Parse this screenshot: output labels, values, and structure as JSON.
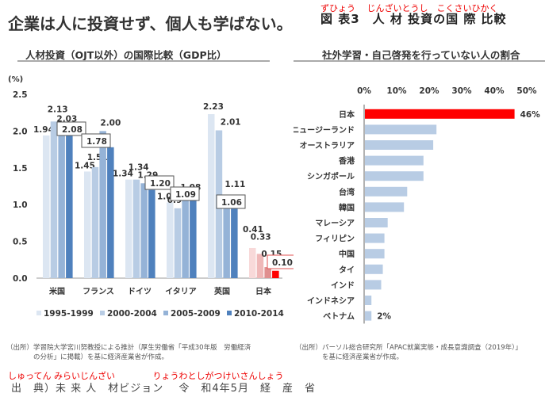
{
  "header": {
    "main_title": "企業は人に投資せず、個人も学ばない。",
    "figure_ruby": "ずひょう　 じんざいとうし　こくさいひかく",
    "figure_title": "図 表3　人 材 投資の国 際 比較"
  },
  "footer": {
    "ruby": "しゅってん みらいじんざい　　　　 りょうわとしがつけいさんしょう",
    "text": "出　典）未 来 人　材ビジョン　 令　和4年5月　経　産　省"
  },
  "chart_data": [
    {
      "type": "bar",
      "title": "人材投資（OJT以外）の国際比較（GDP比）",
      "ylabel": "(%)",
      "xlabel": "",
      "ylim": [
        0,
        2.5
      ],
      "yticks": [
        "0.0",
        "0.5",
        "1.0",
        "1.5",
        "2.0",
        "2.5"
      ],
      "grid": false,
      "legend_position": "bottom",
      "categories": [
        "米国",
        "フランス",
        "ドイツ",
        "イタリア",
        "英国",
        "日本"
      ],
      "series": [
        {
          "name": "1995-1999",
          "values": [
            1.94,
            1.45,
            1.34,
            1.03,
            2.23,
            0.41
          ],
          "color": "#dce6f2"
        },
        {
          "name": "2000-2004",
          "values": [
            2.13,
            1.51,
            1.34,
            0.95,
            2.01,
            0.33
          ],
          "color": "#b8cce4"
        },
        {
          "name": "2005-2009",
          "values": [
            2.03,
            2.0,
            1.29,
            1.08,
            1.11,
            0.15
          ],
          "color": "#95b3d7"
        },
        {
          "name": "2010-2014",
          "values": [
            2.08,
            1.78,
            1.2,
            1.09,
            1.06,
            0.1
          ],
          "color": "#4f81bd"
        }
      ],
      "japan_colors": [
        "#f8d9d9",
        "#efb8b8",
        "#e08f8f",
        "#ff0000"
      ],
      "boxed_labels": "2010-2014",
      "note": "（出所）学習院大学宮川努教授による推計（厚生労働省「平成30年版　労働経済\n　　　　の分析」に掲載）を基に経済産業省が作成。"
    },
    {
      "type": "bar",
      "orientation": "horizontal",
      "title": "社外学習・自己啓発を行っていない人の割合",
      "xlim": [
        0,
        50
      ],
      "xticks": [
        "0%",
        "10%",
        "20%",
        "30%",
        "40%",
        "50%"
      ],
      "grid": false,
      "categories": [
        "日本",
        "ニュージーランド",
        "オーストラリア",
        "香港",
        "シンガポール",
        "台湾",
        "韓国",
        "マレーシア",
        "フィリピン",
        "中国",
        "タイ",
        "インド",
        "インドネシア",
        "ベトナム"
      ],
      "values": [
        46,
        22,
        21,
        18,
        18,
        13,
        12,
        7,
        6,
        6,
        5.5,
        5,
        2,
        2
      ],
      "data_labels": {
        "日本": "46%",
        "ベトナム": "2%"
      },
      "highlight_color": "#ff0000",
      "bar_color": "#b8cce4",
      "note": "（出所）パーソル総合研究所「APAC就業実態・成長意識調査（2019年）」\n　　　　を基に経済産業省が作成。"
    }
  ]
}
